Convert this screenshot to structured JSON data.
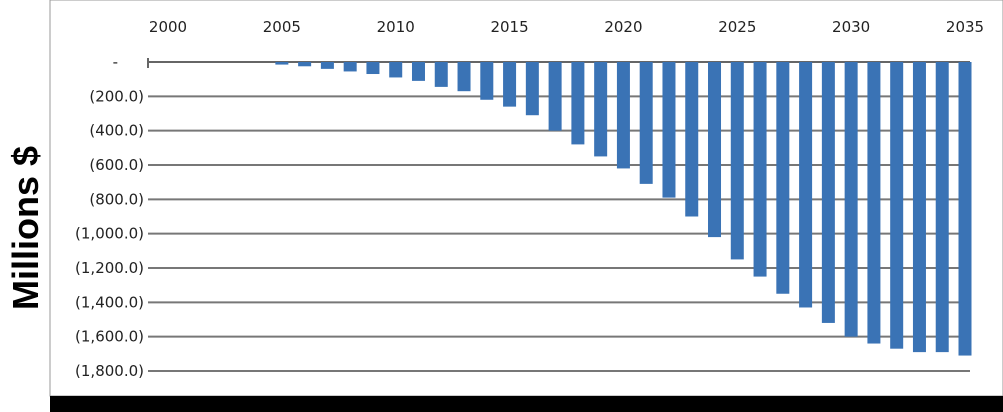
{
  "chart_data": {
    "type": "bar",
    "title": "",
    "xlabel": "",
    "ylabel": "Millions $",
    "x": [
      2000,
      2001,
      2002,
      2003,
      2004,
      2005,
      2006,
      2007,
      2008,
      2009,
      2010,
      2011,
      2012,
      2013,
      2014,
      2015,
      2016,
      2017,
      2018,
      2019,
      2020,
      2021,
      2022,
      2023,
      2024,
      2025,
      2026,
      2027,
      2028,
      2029,
      2030,
      2031,
      2032,
      2033,
      2034,
      2035
    ],
    "values": [
      0,
      0,
      0,
      0,
      0,
      -15,
      -25,
      -40,
      -55,
      -70,
      -90,
      -110,
      -145,
      -170,
      -220,
      -260,
      -310,
      -400,
      -480,
      -550,
      -620,
      -710,
      -790,
      -900,
      -1020,
      -1150,
      -1250,
      -1350,
      -1430,
      -1520,
      -1600,
      -1640,
      -1670,
      -1690,
      -1690,
      -1710
    ],
    "xticks": [
      "2000",
      "2005",
      "2010",
      "2015",
      "2020",
      "2025",
      "2030",
      "2035"
    ],
    "yticks": [
      {
        "value": 0,
        "label": "-"
      },
      {
        "value": -200,
        "label": "(200.0)"
      },
      {
        "value": -400,
        "label": "(400.0)"
      },
      {
        "value": -600,
        "label": "(600.0)"
      },
      {
        "value": -800,
        "label": "(800.0)"
      },
      {
        "value": -1000,
        "label": "(1,000.0)"
      },
      {
        "value": -1200,
        "label": "(1,200.0)"
      },
      {
        "value": -1400,
        "label": "(1,400.0)"
      },
      {
        "value": -1600,
        "label": "(1,600.0)"
      },
      {
        "value": -1800,
        "label": "(1,800.0)"
      }
    ],
    "ylim": [
      -1800,
      0
    ],
    "xlim": [
      2000,
      2035
    ],
    "grid": true,
    "x_axis_position": "top",
    "bar_color": "#3a73b5"
  }
}
